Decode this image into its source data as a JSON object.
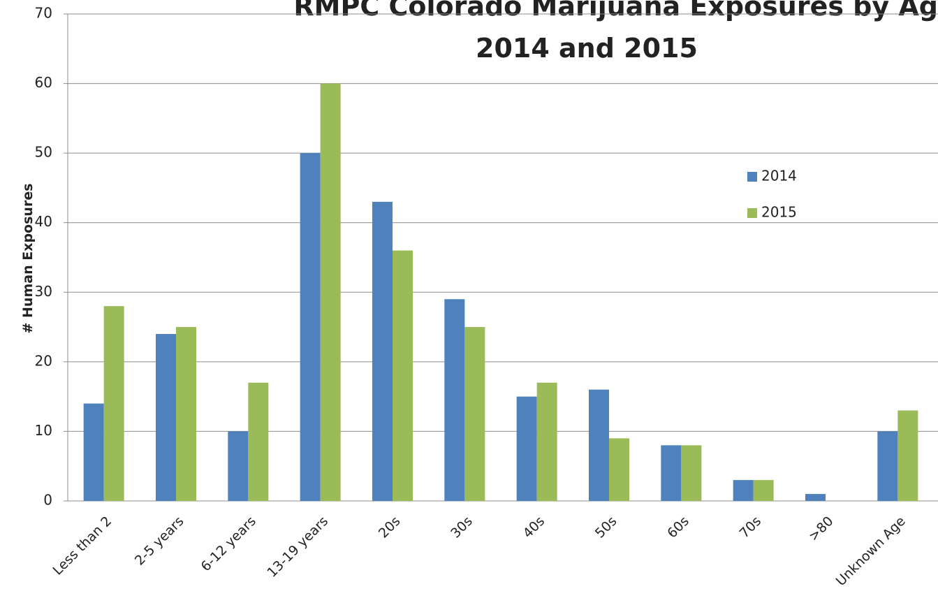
{
  "chart_data": {
    "type": "bar",
    "title": "RMPC Colorado Marijuana Exposures by Ag",
    "subtitle": "2014 and 2015",
    "y_label": "# Human Exposures",
    "categories": [
      "Less than 2",
      "2-5 years",
      "6-12 years",
      "13-19 years",
      "20s",
      "30s",
      "40s",
      "50s",
      "60s",
      "70s",
      ">80",
      "Unknown Age"
    ],
    "series": [
      {
        "name": "2014",
        "color": "#4f81bd",
        "values": [
          14,
          24,
          10,
          50,
          43,
          29,
          15,
          16,
          8,
          3,
          1,
          10
        ]
      },
      {
        "name": "2015",
        "color": "#9bbb59",
        "values": [
          28,
          25,
          17,
          60,
          36,
          25,
          17,
          9,
          8,
          3,
          0,
          13
        ]
      }
    ],
    "ylim": [
      0,
      70
    ],
    "yticks": [
      0,
      10,
      20,
      30,
      40,
      50,
      60,
      70
    ],
    "grid": true,
    "legend": "right"
  }
}
